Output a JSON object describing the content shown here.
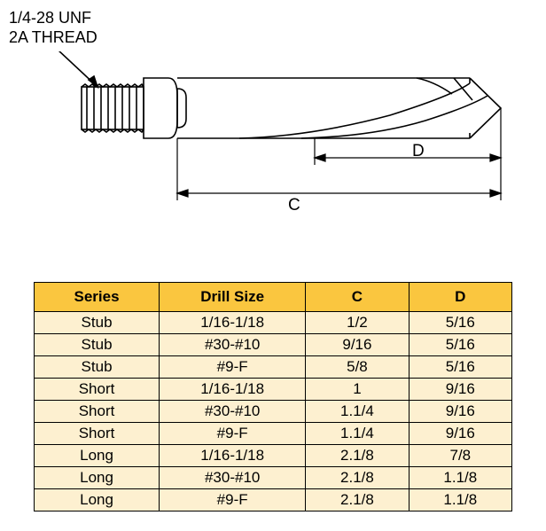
{
  "thread_label": {
    "line1": "1/4-28 UNF",
    "line2": "2A THREAD"
  },
  "dimensions": {
    "c_label": "C",
    "d_label": "D"
  },
  "diagram_style": {
    "stroke": "#000000",
    "stroke_width": 1.6,
    "dim_stroke_width": 1.2
  },
  "table": {
    "header_bg": "#fac63f",
    "row_bg": "#fdf0d0",
    "columns": [
      "Series",
      "Drill Size",
      "C",
      "D"
    ],
    "groups": [
      {
        "rows": [
          [
            "Stub",
            "1/16-1/18",
            "1/2",
            "5/16"
          ],
          [
            "Stub",
            "#30-#10",
            "9/16",
            "5/16"
          ],
          [
            "Stub",
            "#9-F",
            "5/8",
            "5/16"
          ]
        ]
      },
      {
        "rows": [
          [
            "Short",
            "1/16-1/18",
            "1",
            "9/16"
          ],
          [
            "Short",
            "#30-#10",
            "1.1/4",
            "9/16"
          ],
          [
            "Short",
            "#9-F",
            "1.1/4",
            "9/16"
          ]
        ]
      },
      {
        "rows": [
          [
            "Long",
            "1/16-1/18",
            "2.1/8",
            "7/8"
          ],
          [
            "Long",
            "#30-#10",
            "2.1/8",
            "1.1/8"
          ],
          [
            "Long",
            "#9-F",
            "2.1/8",
            "1.1/8"
          ]
        ]
      }
    ]
  }
}
